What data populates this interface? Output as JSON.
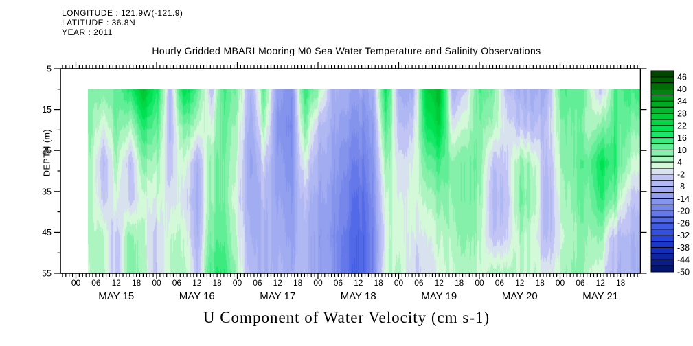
{
  "header": {
    "longitude": "LONGITUDE : 121.9W(-121.9)",
    "latitude": "LATITUDE : 36.8N",
    "year": "YEAR : 2011"
  },
  "title": "Hourly Gridded MBARI Mooring M0 Sea Water Temperature and Salinity Observations",
  "caption": "U Component of Water Velocity (cm s-1)",
  "chart_data": {
    "type": "heatmap",
    "title": "Hourly Gridded MBARI Mooring M0 Sea Water Temperature and Salinity Observations",
    "variable": "U Component of Water Velocity (cm s-1)",
    "ylabel": "DEPTH (m)",
    "y_ticks": [
      5,
      15,
      25,
      35,
      45,
      55
    ],
    "y_minor_ticks": [
      10,
      20,
      30,
      40,
      50
    ],
    "y_range": [
      5,
      55
    ],
    "x_days": [
      "MAY 15",
      "MAY 16",
      "MAY 17",
      "MAY 18",
      "MAY 19",
      "MAY 20",
      "MAY 21"
    ],
    "hour_tick_labels": [
      "00",
      "06",
      "12",
      "18"
    ],
    "x_axis_hours_range": [
      -4.6,
      168
    ],
    "grid_lines": false,
    "legend_position": "right-colorbar",
    "colorbar": {
      "labels": [
        46,
        40,
        34,
        28,
        22,
        16,
        10,
        4,
        -2,
        -8,
        -14,
        -20,
        -26,
        -32,
        -38,
        -44,
        -50
      ],
      "value_max": 49,
      "value_min": -50,
      "cell_step": 3,
      "stops": [
        [
          49,
          "#003c00"
        ],
        [
          43,
          "#006400"
        ],
        [
          37,
          "#008c14"
        ],
        [
          31,
          "#00b428"
        ],
        [
          25,
          "#00d23c"
        ],
        [
          19,
          "#00e65a"
        ],
        [
          13,
          "#50ec8c"
        ],
        [
          7,
          "#96f2b4"
        ],
        [
          4,
          "#c2f7cc"
        ],
        [
          1,
          "#e6fbe6"
        ],
        [
          -2,
          "#cacaf6"
        ],
        [
          -8,
          "#a8b2f2"
        ],
        [
          -14,
          "#8c9aee"
        ],
        [
          -20,
          "#6e80ea"
        ],
        [
          -26,
          "#4862e6"
        ],
        [
          -32,
          "#2a48e0"
        ],
        [
          -38,
          "#1632c8"
        ],
        [
          -44,
          "#0a2096"
        ],
        [
          -50,
          "#001064"
        ]
      ]
    },
    "grid": {
      "units": "cm s-1",
      "hour_start": 4,
      "hour_step": 4,
      "depths": [
        10,
        19,
        28,
        37,
        46,
        55
      ],
      "columns": [
        [
          8,
          7,
          6,
          5,
          4,
          3
        ],
        [
          10,
          2,
          -5,
          -2,
          6,
          7
        ],
        [
          12,
          10,
          6,
          2,
          -4,
          -5
        ],
        [
          16,
          4,
          -6,
          -4,
          8,
          9
        ],
        [
          28,
          16,
          8,
          2,
          4,
          5
        ],
        [
          18,
          12,
          6,
          2,
          -3,
          -4
        ],
        [
          -6,
          -6,
          -4,
          0,
          4,
          5
        ],
        [
          22,
          10,
          4,
          0,
          4,
          6
        ],
        [
          14,
          6,
          -6,
          -8,
          -6,
          -4
        ],
        [
          -4,
          2,
          8,
          8,
          10,
          14
        ],
        [
          14,
          12,
          10,
          10,
          12,
          16
        ],
        [
          8,
          4,
          2,
          0,
          2,
          4
        ],
        [
          -8,
          -10,
          -12,
          -10,
          -8,
          -6
        ],
        [
          12,
          6,
          -2,
          -6,
          -8,
          -8
        ],
        [
          -14,
          -16,
          -14,
          -12,
          -10,
          -8
        ],
        [
          -16,
          -18,
          -16,
          -14,
          -12,
          -10
        ],
        [
          16,
          10,
          2,
          -4,
          -6,
          -6
        ],
        [
          8,
          -4,
          -8,
          -10,
          -12,
          -12
        ],
        [
          -8,
          -10,
          -12,
          -14,
          -16,
          -14
        ],
        [
          -10,
          -14,
          -18,
          -20,
          -22,
          -24
        ],
        [
          -12,
          -16,
          -20,
          -24,
          -26,
          -26
        ],
        [
          -10,
          -14,
          -16,
          -18,
          -20,
          -20
        ],
        [
          20,
          14,
          8,
          4,
          2,
          4
        ],
        [
          -8,
          -4,
          0,
          2,
          4,
          6
        ],
        [
          -10,
          -4,
          0,
          2,
          0,
          -2
        ],
        [
          24,
          18,
          10,
          4,
          0,
          -2
        ],
        [
          30,
          24,
          14,
          8,
          4,
          2
        ],
        [
          -8,
          0,
          8,
          8,
          6,
          4
        ],
        [
          -2,
          4,
          10,
          10,
          8,
          6
        ],
        [
          14,
          10,
          10,
          8,
          6,
          4
        ],
        [
          10,
          6,
          -4,
          -6,
          -4,
          6
        ],
        [
          -4,
          0,
          -2,
          -4,
          -2,
          6
        ],
        [
          -8,
          -4,
          8,
          10,
          6,
          4
        ],
        [
          -10,
          -6,
          4,
          6,
          2,
          4
        ],
        [
          -8,
          -4,
          -6,
          -8,
          -6,
          0
        ],
        [
          12,
          8,
          6,
          4,
          2,
          4
        ],
        [
          12,
          10,
          10,
          8,
          6,
          8
        ],
        [
          8,
          6,
          12,
          10,
          8,
          6
        ],
        [
          -4,
          8,
          20,
          16,
          8,
          2
        ],
        [
          12,
          14,
          16,
          10,
          -4,
          -6
        ],
        [
          14,
          10,
          6,
          -2,
          -6,
          -8
        ],
        [
          16,
          8,
          2,
          -4,
          -8,
          -8
        ]
      ]
    }
  }
}
